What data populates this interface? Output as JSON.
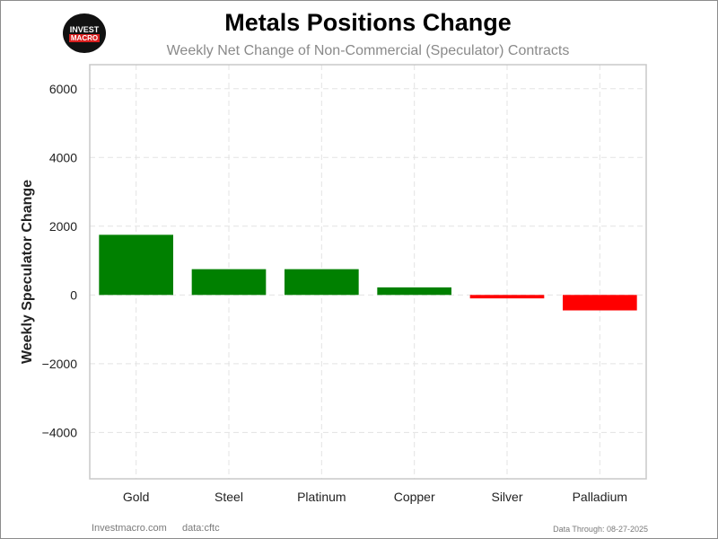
{
  "logo": {
    "line1": "INVEST",
    "line2": "MACRO"
  },
  "footer": {
    "site": "Investmacro.com",
    "source": "data:cftc",
    "data_through": "Data Through: 08-27-2025"
  },
  "colors": {
    "positive": "#008000",
    "negative": "#ff0000",
    "grid": "#e3e3e3",
    "axes": "#c8c8c8"
  },
  "chart_data": {
    "type": "bar",
    "title": "Metals Positions Change",
    "subtitle": "Weekly Net Change of Non-Commercial (Speculator) Contracts",
    "xlabel": "",
    "ylabel": "Weekly Speculator Change",
    "categories": [
      "Gold",
      "Steel",
      "Platinum",
      "Copper",
      "Silver",
      "Palladium"
    ],
    "values": [
      1750,
      750,
      750,
      220,
      -100,
      -450
    ],
    "ylim": [
      -5350,
      6700
    ],
    "yticks": [
      6000,
      4000,
      2000,
      0,
      -2000,
      -4000
    ],
    "ytick_labels": [
      "6000",
      "4000",
      "2000",
      "0",
      "−2000",
      "−4000"
    ],
    "grid": true,
    "legend": "none"
  }
}
